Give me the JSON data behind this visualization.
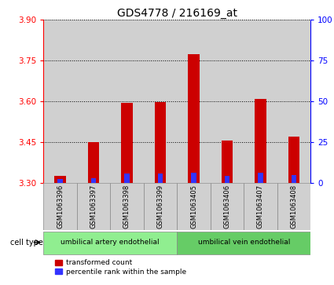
{
  "title": "GDS4778 / 216169_at",
  "samples": [
    "GSM1063396",
    "GSM1063397",
    "GSM1063398",
    "GSM1063399",
    "GSM1063405",
    "GSM1063406",
    "GSM1063407",
    "GSM1063408"
  ],
  "red_values": [
    3.325,
    3.45,
    3.595,
    3.597,
    3.775,
    3.455,
    3.61,
    3.47
  ],
  "blue_values": [
    3.315,
    3.318,
    3.335,
    3.335,
    3.337,
    3.325,
    3.336,
    3.328
  ],
  "baseline": 3.3,
  "ylim_left": [
    3.3,
    3.9
  ],
  "yticks_left": [
    3.3,
    3.45,
    3.6,
    3.75,
    3.9
  ],
  "yticks_right": [
    0,
    25,
    50,
    75,
    100
  ],
  "cell_type_groups": [
    {
      "label": "umbilical artery endothelial",
      "indices": [
        0,
        1,
        2,
        3
      ],
      "color": "#90EE90"
    },
    {
      "label": "umbilical vein endothelial",
      "indices": [
        4,
        5,
        6,
        7
      ],
      "color": "#66CC66"
    }
  ],
  "cell_type_label": "cell type",
  "legend_red": "transformed count",
  "legend_blue": "percentile rank within the sample",
  "bar_color_red": "#CC0000",
  "bar_color_blue": "#3333FF",
  "bar_width": 0.35,
  "bg_color": "#FFFFFF",
  "sample_bg_color": "#D0D0D0",
  "title_fontsize": 10,
  "tick_fontsize": 7.5,
  "label_fontsize": 7
}
